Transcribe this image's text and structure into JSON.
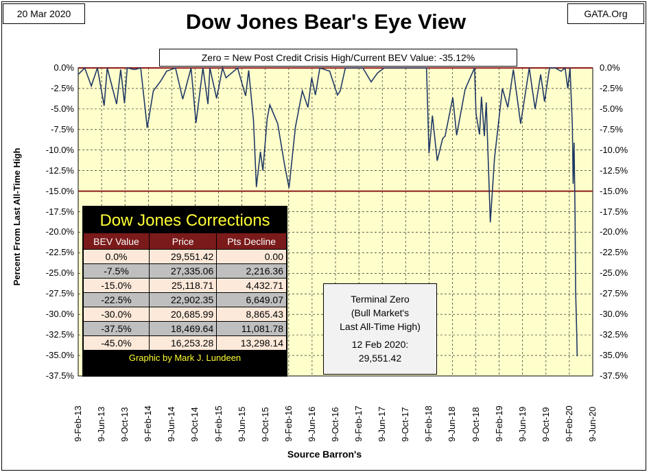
{
  "header": {
    "date": "20 Mar 2020",
    "source_site": "GATA.Org",
    "title": "Dow Jones Bear's Eye View"
  },
  "annotation_top": "Zero = New Post Credit Crisis High/Current BEV Value:  -35.12%",
  "axes": {
    "ylabel": "Percent From Last All-Time High",
    "xlabel": "Source Barron's",
    "yticks": [
      "0.0%",
      "-2.5%",
      "-5.0%",
      "-7.5%",
      "-10.0%",
      "-12.5%",
      "-15.0%",
      "-17.5%",
      "-20.0%",
      "-22.5%",
      "-25.0%",
      "-27.5%",
      "-30.0%",
      "-32.5%",
      "-35.0%",
      "-37.5%"
    ],
    "xticks": [
      "9-Feb-13",
      "9-Jun-13",
      "9-Oct-13",
      "9-Feb-14",
      "9-Jun-14",
      "9-Oct-14",
      "9-Feb-15",
      "9-Jun-15",
      "9-Oct-15",
      "9-Feb-16",
      "9-Jun-16",
      "9-Oct-16",
      "9-Feb-17",
      "9-Jun-17",
      "9-Oct-17",
      "9-Feb-18",
      "9-Jun-18",
      "9-Oct-18",
      "9-Feb-19",
      "9-Jun-19",
      "9-Oct-19",
      "9-Feb-20",
      "9-Jun-20"
    ]
  },
  "corrections_table": {
    "title": "Dow Jones Corrections",
    "headers": [
      "BEV Value",
      "Price",
      "Pts Decline"
    ],
    "rows": [
      [
        "0.0%",
        "29,551.42",
        "0.00"
      ],
      [
        "-7.5%",
        "27,335.06",
        "2,216.36"
      ],
      [
        "-15.0%",
        "25,118.71",
        "4,432.71"
      ],
      [
        "-22.5%",
        "22,902.35",
        "6,649.07"
      ],
      [
        "-30.0%",
        "20,685.99",
        "8,865.43"
      ],
      [
        "-37.5%",
        "18,469.64",
        "11,081.78"
      ],
      [
        "-45.0%",
        "16,253.28",
        "13,298.14"
      ]
    ],
    "credit": "Graphic by Mark J. Lundeen"
  },
  "terminal_box": {
    "line1": "Terminal Zero",
    "line2": "(Bull Market's",
    "line3": "Last All-Time High)",
    "line4": "12 Feb 2020:",
    "line5": "29,551.42"
  },
  "colors": {
    "plot_bg": "#ffffcc",
    "line": "#1f3864",
    "ref_line": "#8b1a1a",
    "table_header": "#7a1a1a",
    "table_title": "#ffff33"
  },
  "chart_data": {
    "type": "line",
    "title": "Dow Jones Bear's Eye View",
    "xlabel": "Source Barron's",
    "ylabel": "Percent From Last All-Time High",
    "xlim": [
      "2013-02-09",
      "2020-06-09"
    ],
    "ylim": [
      -37.5,
      0
    ],
    "grid": true,
    "reference_lines": [
      0,
      -15
    ],
    "series": [
      {
        "x": [
          "2013-02-09",
          "2013-03-15",
          "2013-04-18",
          "2013-05-20",
          "2013-06-24",
          "2013-07-10",
          "2013-08-28",
          "2013-09-18",
          "2013-10-08",
          "2013-10-22",
          "2013-11-29",
          "2013-12-31",
          "2014-02-03",
          "2014-03-07",
          "2014-04-14",
          "2014-05-15",
          "2014-06-30",
          "2014-08-07",
          "2014-09-19",
          "2014-10-15",
          "2014-11-20",
          "2014-12-16",
          "2014-12-26",
          "2015-01-30",
          "2015-03-02",
          "2015-03-20",
          "2015-05-19",
          "2015-06-30",
          "2015-07-16",
          "2015-08-10",
          "2015-08-25",
          "2015-09-15",
          "2015-09-28",
          "2015-10-20",
          "2015-11-03",
          "2015-12-14",
          "2016-01-20",
          "2016-02-11",
          "2016-03-15",
          "2016-04-20",
          "2016-05-19",
          "2016-06-08",
          "2016-06-27",
          "2016-07-20",
          "2016-09-09",
          "2016-10-20",
          "2016-11-03",
          "2016-11-30",
          "2017-01-25",
          "2017-03-01",
          "2017-04-13",
          "2017-05-17",
          "2017-06-20",
          "2017-08-10",
          "2017-09-20",
          "2017-10-31",
          "2017-11-30",
          "2018-01-26",
          "2018-02-08",
          "2018-02-26",
          "2018-03-23",
          "2018-04-20",
          "2018-05-03",
          "2018-06-12",
          "2018-07-02",
          "2018-08-15",
          "2018-10-03",
          "2018-10-11",
          "2018-10-29",
          "2018-11-08",
          "2018-11-23",
          "2018-12-03",
          "2018-12-24",
          "2019-01-15",
          "2019-02-25",
          "2019-03-25",
          "2019-04-23",
          "2019-05-31",
          "2019-07-15",
          "2019-08-14",
          "2019-09-12",
          "2019-10-02",
          "2019-10-28",
          "2019-11-27",
          "2019-12-27",
          "2020-01-17",
          "2020-01-31",
          "2020-02-12",
          "2020-02-24",
          "2020-02-28",
          "2020-03-04",
          "2020-03-09",
          "2020-03-12",
          "2020-03-16",
          "2020-03-18",
          "2020-03-20"
        ],
        "values": [
          -0.8,
          0.0,
          -2.2,
          0.0,
          -4.6,
          0.0,
          -4.4,
          -0.2,
          -4.3,
          0.0,
          -0.2,
          0.0,
          -7.3,
          -2.8,
          -1.6,
          -0.4,
          0.0,
          -3.8,
          0.0,
          -6.7,
          0.0,
          -4.4,
          0.0,
          -3.7,
          0.0,
          -1.2,
          0.0,
          -3.4,
          -0.3,
          -6.4,
          -14.5,
          -10.2,
          -12.5,
          -6.2,
          -4.5,
          -6.8,
          -12.0,
          -14.6,
          -7.2,
          -2.8,
          -4.8,
          -1.2,
          -3.3,
          0.0,
          -0.4,
          -3.3,
          -2.8,
          0.0,
          0.0,
          0.0,
          -1.7,
          -0.6,
          0.0,
          0.0,
          0.0,
          0.0,
          0.0,
          0.0,
          -10.4,
          -5.8,
          -11.3,
          -8.6,
          -8.3,
          -3.6,
          -8.2,
          -2.6,
          0.0,
          -5.6,
          -8.1,
          -3.5,
          -8.3,
          -4.2,
          -18.8,
          -11.0,
          -2.5,
          -4.8,
          -0.2,
          -6.8,
          0.0,
          -5.0,
          -0.8,
          -4.1,
          0.0,
          0.0,
          -0.4,
          0.0,
          -2.5,
          0.0,
          -7.1,
          -14.1,
          -9.1,
          -17.8,
          -27.3,
          -30.8,
          -32.5,
          -35.1
        ]
      }
    ]
  }
}
